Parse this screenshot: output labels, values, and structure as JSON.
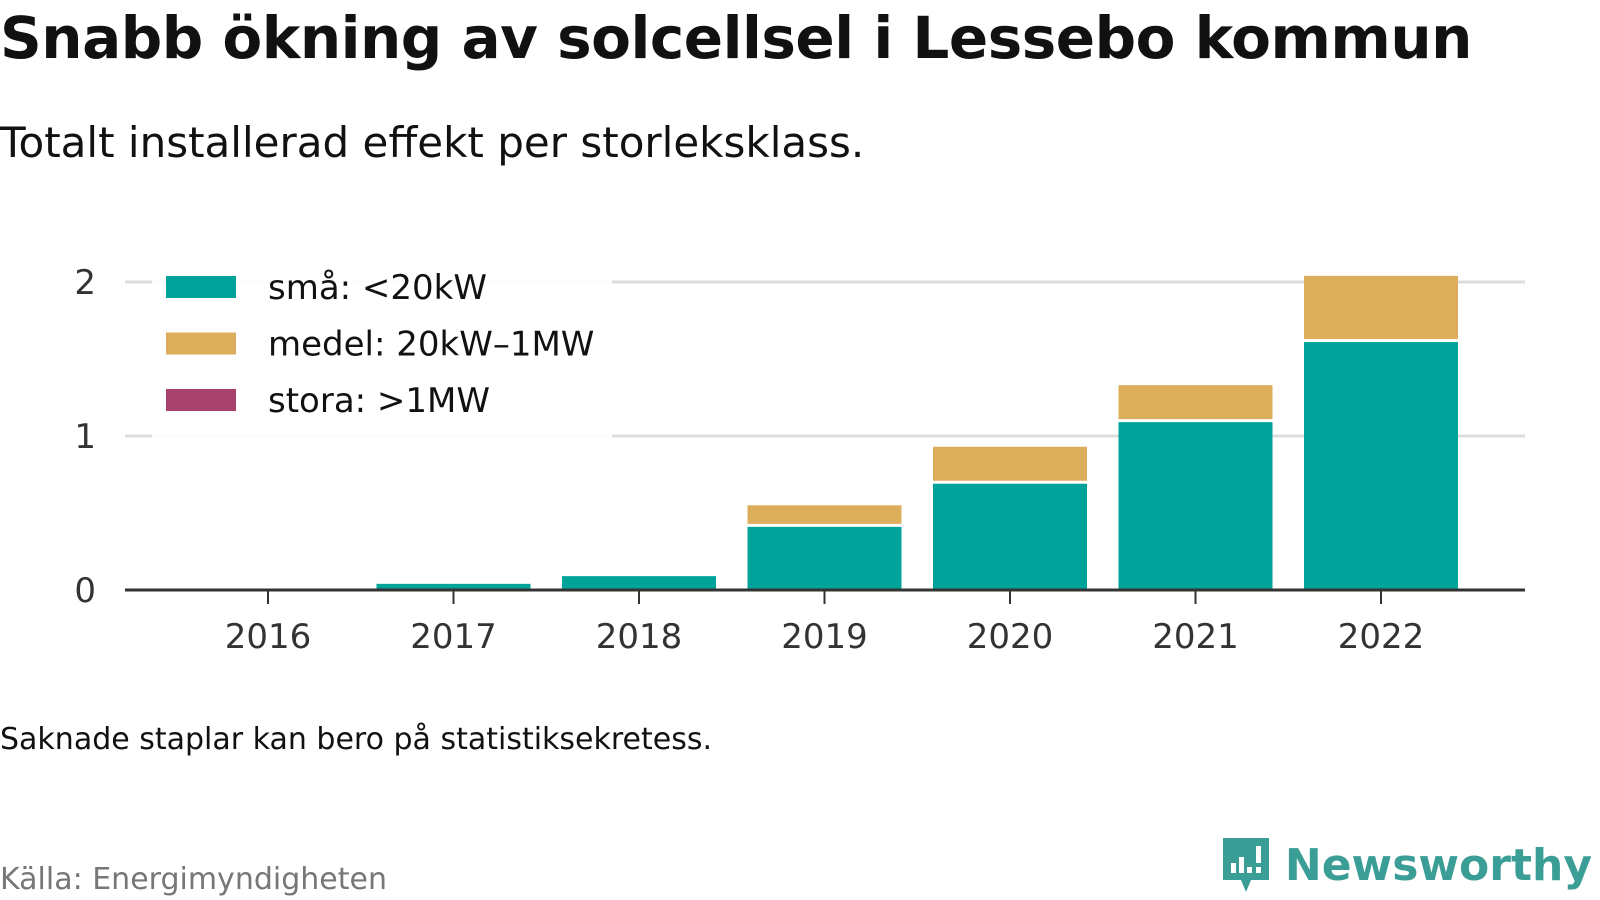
{
  "header": {
    "title": "Snabb ökning av solcellsel i Lessebo kommun",
    "subtitle": "Totalt installerad effekt per storleksklass."
  },
  "footer": {
    "note": "Saknade staplar kan bero på statistiksekretess.",
    "source": "Källa: Energimyndigheten",
    "brand": "Newsworthy",
    "brand_icon": "newsworthy-logo-icon"
  },
  "chart_data": {
    "type": "bar",
    "stacked": true,
    "categories": [
      "2016",
      "2017",
      "2018",
      "2019",
      "2020",
      "2021",
      "2022"
    ],
    "series": [
      {
        "name": "små: <20kW",
        "color": "#00a39a",
        "values": [
          0,
          0.04,
          0.09,
          0.41,
          0.69,
          1.09,
          1.61
        ]
      },
      {
        "name": "medel: 20kW–1MW",
        "color": "#dcae5c",
        "values": [
          0,
          0,
          0,
          0.14,
          0.24,
          0.24,
          0.43
        ]
      },
      {
        "name": "stora: >1MW",
        "color": "#a8416b",
        "values": [
          0,
          0,
          0,
          0,
          0,
          0,
          0
        ]
      }
    ],
    "ylim": [
      0,
      2
    ],
    "yticks": [
      0,
      1,
      2
    ],
    "xlabel": "",
    "ylabel": "",
    "grid": true,
    "legend_position": "top-left"
  }
}
